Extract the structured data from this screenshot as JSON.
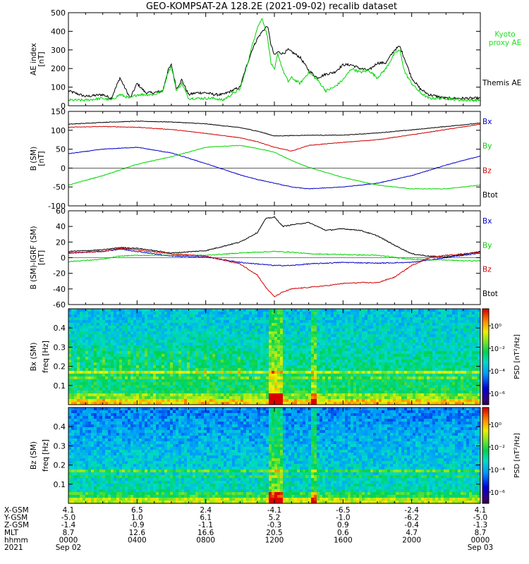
{
  "title": "GEO-KOMPSAT-2A 128.2E (2021-09-02) recalib dataset",
  "colors": {
    "black": "#000000",
    "green": "#00d400",
    "red": "#d00000",
    "blue": "#0000c8",
    "kyoto": "#22dd22"
  },
  "chart_data": [
    {
      "type": "line",
      "panel": "ae",
      "ylabel": [
        "AE index",
        "[nT]"
      ],
      "ylim": [
        0,
        500
      ],
      "yticks": [
        0,
        100,
        200,
        300,
        400,
        500
      ],
      "legend": [
        {
          "text": [
            "Kyoto",
            "proxy AE"
          ],
          "color": "#22dd22"
        },
        {
          "text": [
            "Themis AE"
          ],
          "color": "#000000"
        }
      ],
      "x_unit": "hour (UT)",
      "series": [
        {
          "name": "Themis AE",
          "color": "#000000",
          "x": [
            0,
            1,
            2,
            2.5,
            3,
            3.6,
            4,
            4.5,
            5,
            5.5,
            5.8,
            6,
            6.3,
            6.6,
            7,
            7.5,
            8,
            8.5,
            9,
            9.5,
            10,
            10.3,
            10.7,
            11,
            11.3,
            11.6,
            11.8,
            12,
            12.2,
            12.5,
            12.8,
            13,
            13.5,
            14,
            14.5,
            15,
            15.5,
            16,
            16.5,
            17,
            17.5,
            18,
            18.5,
            19,
            19.3,
            19.6,
            20,
            20.5,
            21,
            21.5,
            22,
            23,
            24
          ],
          "y": [
            80,
            50,
            60,
            40,
            150,
            40,
            120,
            70,
            70,
            80,
            190,
            220,
            90,
            140,
            60,
            70,
            70,
            60,
            60,
            80,
            100,
            190,
            300,
            360,
            400,
            430,
            330,
            270,
            290,
            280,
            300,
            290,
            260,
            190,
            150,
            170,
            180,
            220,
            220,
            200,
            190,
            230,
            230,
            300,
            320,
            250,
            150,
            90,
            60,
            50,
            40,
            40,
            40
          ]
        },
        {
          "name": "Kyoto proxy AE",
          "color": "#00d400",
          "x": [
            0,
            1,
            2,
            2.5,
            3,
            3.6,
            4,
            4.5,
            5,
            5.5,
            5.8,
            6,
            6.3,
            6.6,
            7,
            7.5,
            8,
            8.5,
            9,
            9.5,
            10,
            10.3,
            10.7,
            11,
            11.3,
            11.6,
            11.8,
            12,
            12.2,
            12.5,
            12.8,
            13,
            13.5,
            14,
            14.5,
            15,
            15.5,
            16,
            16.5,
            17,
            17.5,
            18,
            18.5,
            19,
            19.3,
            19.6,
            20,
            20.5,
            21,
            21.5,
            22,
            23,
            24
          ],
          "y": [
            30,
            30,
            40,
            30,
            60,
            40,
            60,
            60,
            60,
            80,
            180,
            210,
            80,
            120,
            40,
            40,
            40,
            40,
            30,
            60,
            90,
            180,
            320,
            420,
            470,
            370,
            230,
            190,
            280,
            190,
            130,
            150,
            120,
            180,
            140,
            80,
            100,
            140,
            200,
            180,
            190,
            150,
            200,
            280,
            300,
            180,
            120,
            70,
            40,
            40,
            40,
            30,
            30
          ]
        }
      ]
    },
    {
      "type": "line",
      "panel": "b-sm",
      "ylabel": [
        "B (SM)",
        "[nT]"
      ],
      "ylim": [
        -100,
        150
      ],
      "yticks": [
        -100,
        -50,
        0,
        50,
        100,
        150
      ],
      "legend": [
        {
          "text": [
            "Bx"
          ],
          "color": "#0000c8"
        },
        {
          "text": [
            "By"
          ],
          "color": "#00d400"
        },
        {
          "text": [
            "Bz"
          ],
          "color": "#d00000"
        },
        {
          "text": [
            "Btot"
          ],
          "color": "#000000"
        }
      ],
      "series": [
        {
          "name": "Btot",
          "color": "#000000",
          "x": [
            0,
            2,
            4,
            6,
            8,
            10,
            11,
            12,
            13,
            14,
            16,
            18,
            20,
            22,
            24
          ],
          "y": [
            116,
            121,
            124,
            122,
            117,
            107,
            98,
            85,
            86,
            87,
            87,
            93,
            101,
            110,
            119
          ]
        },
        {
          "name": "Bz",
          "color": "#d00000",
          "x": [
            0,
            2,
            4,
            6,
            8,
            10,
            11,
            12,
            13,
            14,
            16,
            18,
            20,
            22,
            24
          ],
          "y": [
            108,
            110,
            108,
            102,
            92,
            80,
            70,
            55,
            45,
            60,
            68,
            75,
            88,
            102,
            116
          ]
        },
        {
          "name": "Bx",
          "color": "#0000c8",
          "x": [
            0,
            2,
            4,
            6,
            8,
            10,
            11,
            12,
            13,
            14,
            16,
            18,
            20,
            22,
            24
          ],
          "y": [
            38,
            50,
            55,
            40,
            12,
            -18,
            -30,
            -40,
            -50,
            -55,
            -50,
            -40,
            -20,
            8,
            32
          ]
        },
        {
          "name": "By",
          "color": "#00d400",
          "x": [
            0,
            2,
            4,
            6,
            8,
            10,
            11,
            12,
            13,
            14,
            16,
            18,
            20,
            22,
            24
          ],
          "y": [
            -45,
            -20,
            10,
            30,
            55,
            60,
            52,
            42,
            20,
            2,
            -25,
            -45,
            -55,
            -55,
            -45
          ]
        }
      ]
    },
    {
      "type": "line",
      "panel": "b-minus-igrf",
      "ylabel": [
        "B (SM)-IGRF (SM)",
        "[nT]"
      ],
      "ylim": [
        -60,
        60
      ],
      "yticks": [
        -60,
        -40,
        -20,
        0,
        20,
        40,
        60
      ],
      "legend": [
        {
          "text": [
            "Bx"
          ],
          "color": "#0000c8"
        },
        {
          "text": [
            "By"
          ],
          "color": "#00d400"
        },
        {
          "text": [
            "Bz"
          ],
          "color": "#d00000"
        },
        {
          "text": [
            "Btot"
          ],
          "color": "#000000"
        }
      ],
      "series": [
        {
          "name": "Btot",
          "color": "#000000",
          "x": [
            0,
            2,
            3,
            4,
            6,
            8,
            10,
            11,
            11.5,
            12,
            12.5,
            13,
            14,
            15,
            16,
            17,
            18,
            19,
            20,
            21,
            22,
            23,
            24
          ],
          "y": [
            8,
            10,
            13,
            12,
            6,
            9,
            20,
            32,
            50,
            52,
            40,
            42,
            45,
            35,
            37,
            35,
            28,
            16,
            5,
            2,
            1,
            4,
            8
          ]
        },
        {
          "name": "Bx",
          "color": "#0000c8",
          "x": [
            0,
            2,
            3,
            4,
            6,
            8,
            10,
            11,
            12,
            13,
            14,
            16,
            18,
            20,
            22,
            23,
            24
          ],
          "y": [
            6,
            8,
            11,
            8,
            2,
            1,
            -6,
            -8,
            -10,
            -10,
            -8,
            -6,
            -7,
            -6,
            0,
            3,
            6
          ]
        },
        {
          "name": "By",
          "color": "#00d400",
          "x": [
            0,
            2,
            3,
            4,
            6,
            8,
            10,
            11,
            12,
            13,
            14,
            16,
            18,
            20,
            22,
            23,
            24
          ],
          "y": [
            -5,
            -2,
            2,
            3,
            3,
            3,
            6,
            7,
            8,
            7,
            5,
            4,
            3,
            -2,
            -3,
            -4,
            -4
          ]
        },
        {
          "name": "Bz",
          "color": "#d00000",
          "x": [
            0,
            2,
            3,
            4,
            6,
            8,
            10,
            11,
            11.5,
            12,
            12.5,
            13,
            14,
            15,
            16,
            17,
            18,
            19,
            20,
            21,
            22,
            23,
            24
          ],
          "y": [
            6,
            8,
            12,
            10,
            5,
            2,
            -8,
            -22,
            -38,
            -50,
            -44,
            -40,
            -38,
            -36,
            -33,
            -32,
            -32,
            -25,
            -10,
            0,
            3,
            5,
            7
          ]
        }
      ]
    },
    {
      "type": "heatmap",
      "panel": "bx-spectrogram",
      "ylabel": [
        "Bx (SM)",
        "freq [Hz]"
      ],
      "ylim": [
        0,
        0.5
      ],
      "yticks": [
        0.1,
        0.2,
        0.3,
        0.4
      ],
      "colorbar": {
        "label": "PSD [nT²/Hz]",
        "ticks": [
          "10⁰",
          "10⁻²",
          "10⁻⁴",
          "10⁻⁶"
        ]
      }
    },
    {
      "type": "heatmap",
      "panel": "bz-spectrogram",
      "ylabel": [
        "Bz (SM)",
        "freq [Hz]"
      ],
      "ylim": [
        0,
        0.5
      ],
      "yticks": [
        0.1,
        0.2,
        0.3,
        0.4
      ],
      "colorbar": {
        "label": "PSD [nT²/Hz]",
        "ticks": [
          "10⁰",
          "10⁻²",
          "10⁻⁴",
          "10⁻⁶"
        ]
      }
    }
  ],
  "xaxis": {
    "rows": [
      {
        "label": "X-GSM",
        "values": [
          "4.1",
          "6.5",
          "2.4",
          "-4.1",
          "-6.5",
          "-2.4",
          "4.1"
        ]
      },
      {
        "label": "Y-GSM",
        "values": [
          "-5.0",
          "1.0",
          "6.1",
          "5.2",
          "-1.0",
          "-6.2",
          "-5.0"
        ]
      },
      {
        "label": "Z-GSM",
        "values": [
          "-1.4",
          "-0.9",
          "-1.1",
          "-0.3",
          "0.9",
          "-0.4",
          "-1.3"
        ]
      },
      {
        "label": "MLT",
        "values": [
          "8.7",
          "12.6",
          "16.6",
          "20.5",
          "0.6",
          "4.7",
          "8.7"
        ]
      },
      {
        "label": "hhmm",
        "values": [
          "0000",
          "0400",
          "0800",
          "1200",
          "1600",
          "2000",
          "0000"
        ]
      }
    ],
    "year": "2021",
    "date_start": "Sep 02",
    "date_end": "Sep 03"
  }
}
